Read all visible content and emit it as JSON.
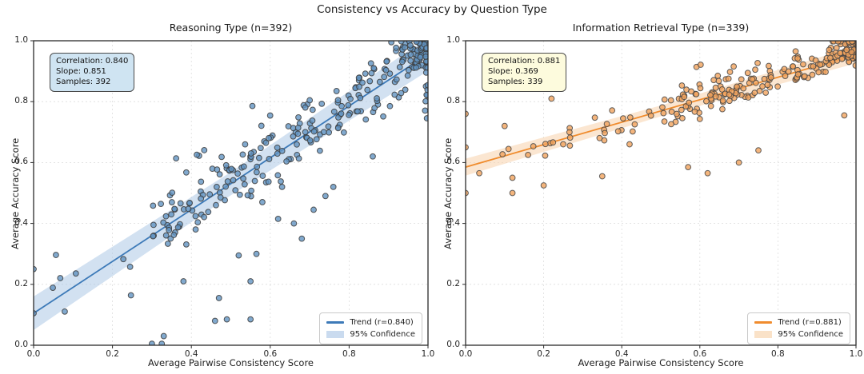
{
  "figure": {
    "suptitle": "Consistency vs Accuracy by Question Type"
  },
  "axes": {
    "x_label": "Average Pairwise Consistency Score",
    "y_label": "Average Accuracy Score",
    "x_tick_labels": [
      "0.0",
      "0.2",
      "0.4",
      "0.6",
      "0.8",
      "1.0"
    ],
    "y_tick_labels": [
      "0.0",
      "0.2",
      "0.4",
      "0.6",
      "0.8",
      "1.0"
    ],
    "tick_values": [
      0,
      0.2,
      0.4,
      0.6,
      0.8,
      1.0
    ]
  },
  "chart_data": [
    {
      "type": "scatter",
      "title": "Reasoning Type (n=392)",
      "xlabel": "Average Pairwise Consistency Score",
      "ylabel": "Average Accuracy Score",
      "xlim": [
        0,
        1
      ],
      "ylim": [
        0,
        1
      ],
      "grid": true,
      "legend_position": "lower right",
      "n_samples": 392,
      "correlation": 0.84,
      "slope": 0.851,
      "annotation": [
        "Correlation: 0.840",
        "Slope: 0.851",
        "Samples: 392"
      ],
      "legend": [
        "Trend (r=0.840)",
        "95% Confidence"
      ],
      "trend": {
        "intercept": 0.105,
        "slope": 0.851,
        "r": 0.84,
        "band_halfwidths": [
          0.055,
          0.038,
          0.055
        ]
      },
      "colors": {
        "point": "#6293c2",
        "point_edge": "#3b3b3b",
        "line": "#3d7ab8",
        "band": "#adc8e6",
        "annotation_bg": "#cfe4f2"
      },
      "seed": 7,
      "clusters": [
        {
          "kind": "corner",
          "n": 80,
          "fx": 0.07,
          "fy": 0.09
        },
        {
          "kind": "band",
          "n": 15,
          "x": [
            0.992,
            1.0
          ],
          "y": [
            0.7,
            0.98
          ]
        },
        {
          "kind": "cloud",
          "n": 185,
          "x": [
            0.3,
            0.98
          ],
          "spread": 0.15
        },
        {
          "kind": "band",
          "n": 8,
          "x": [
            0.02,
            0.3
          ],
          "y": [
            0.1,
            0.33
          ]
        },
        {
          "kind": "band",
          "n": 10,
          "x": [
            0.35,
            0.55
          ],
          "y": [
            0.55,
            0.66
          ]
        },
        {
          "kind": "band",
          "n": 12,
          "x": [
            0.55,
            0.78
          ],
          "y": [
            0.62,
            0.8
          ]
        }
      ],
      "outlier_points": [
        [
          0.0,
          0.25
        ],
        [
          0.0,
          0.105
        ],
        [
          0.3,
          0.005
        ],
        [
          0.325,
          0.005
        ],
        [
          0.33,
          0.03
        ],
        [
          0.46,
          0.08
        ],
        [
          0.49,
          0.085
        ],
        [
          0.55,
          0.085
        ],
        [
          0.47,
          0.155
        ],
        [
          0.38,
          0.21
        ],
        [
          0.55,
          0.21
        ],
        [
          0.52,
          0.295
        ],
        [
          0.565,
          0.3
        ],
        [
          0.58,
          0.47
        ],
        [
          0.63,
          0.52
        ],
        [
          0.62,
          0.415
        ],
        [
          0.66,
          0.4
        ],
        [
          0.71,
          0.445
        ],
        [
          0.68,
          0.35
        ],
        [
          0.74,
          0.49
        ],
        [
          0.76,
          0.52
        ],
        [
          0.86,
          0.62
        ]
      ]
    },
    {
      "type": "scatter",
      "title": "Information Retrieval Type (n=339)",
      "xlabel": "Average Pairwise Consistency Score",
      "ylabel": "Average Accuracy Score",
      "xlim": [
        0,
        1
      ],
      "ylim": [
        0,
        1
      ],
      "grid": true,
      "legend_position": "lower right",
      "n_samples": 339,
      "correlation": 0.881,
      "slope": 0.369,
      "annotation": [
        "Correlation: 0.881",
        "Slope: 0.369",
        "Samples: 339"
      ],
      "legend": [
        "Trend (r=0.881)",
        "95% Confidence"
      ],
      "trend": {
        "intercept": 0.585,
        "slope": 0.369,
        "r": 0.881,
        "band_halfwidths": [
          0.028,
          0.018,
          0.028
        ]
      },
      "colors": {
        "point": "#f1a25c",
        "point_edge": "#454545",
        "line": "#f08c2e",
        "band": "#f8d2ab",
        "annotation_bg": "#fdfbdd"
      },
      "seed": 13,
      "clusters": [
        {
          "kind": "corner",
          "n": 65,
          "fx": 0.07,
          "fy": 0.07
        },
        {
          "kind": "cloud",
          "n": 105,
          "x": [
            0.5,
            0.86
          ],
          "spread": 0.085
        },
        {
          "kind": "cloud",
          "n": 40,
          "x": [
            0.84,
            1.0
          ],
          "spread": 0.055
        },
        {
          "kind": "cloud",
          "n": 26,
          "x": [
            0.05,
            0.5
          ],
          "spread": 0.075
        },
        {
          "kind": "band",
          "n": 10,
          "x": [
            0.55,
            0.75
          ],
          "y": [
            0.86,
            0.93
          ]
        }
      ],
      "outlier_points": [
        [
          0.0,
          0.76
        ],
        [
          0.0,
          0.65
        ],
        [
          0.0,
          0.5
        ],
        [
          0.035,
          0.565
        ],
        [
          0.12,
          0.55
        ],
        [
          0.12,
          0.5
        ],
        [
          0.2,
          0.525
        ],
        [
          0.1,
          0.72
        ],
        [
          0.16,
          0.625
        ],
        [
          0.22,
          0.81
        ],
        [
          0.25,
          0.66
        ],
        [
          0.35,
          0.555
        ],
        [
          0.42,
          0.66
        ],
        [
          0.57,
          0.585
        ],
        [
          0.62,
          0.565
        ],
        [
          0.7,
          0.6
        ],
        [
          0.75,
          0.64
        ],
        [
          0.97,
          0.755
        ]
      ]
    }
  ]
}
